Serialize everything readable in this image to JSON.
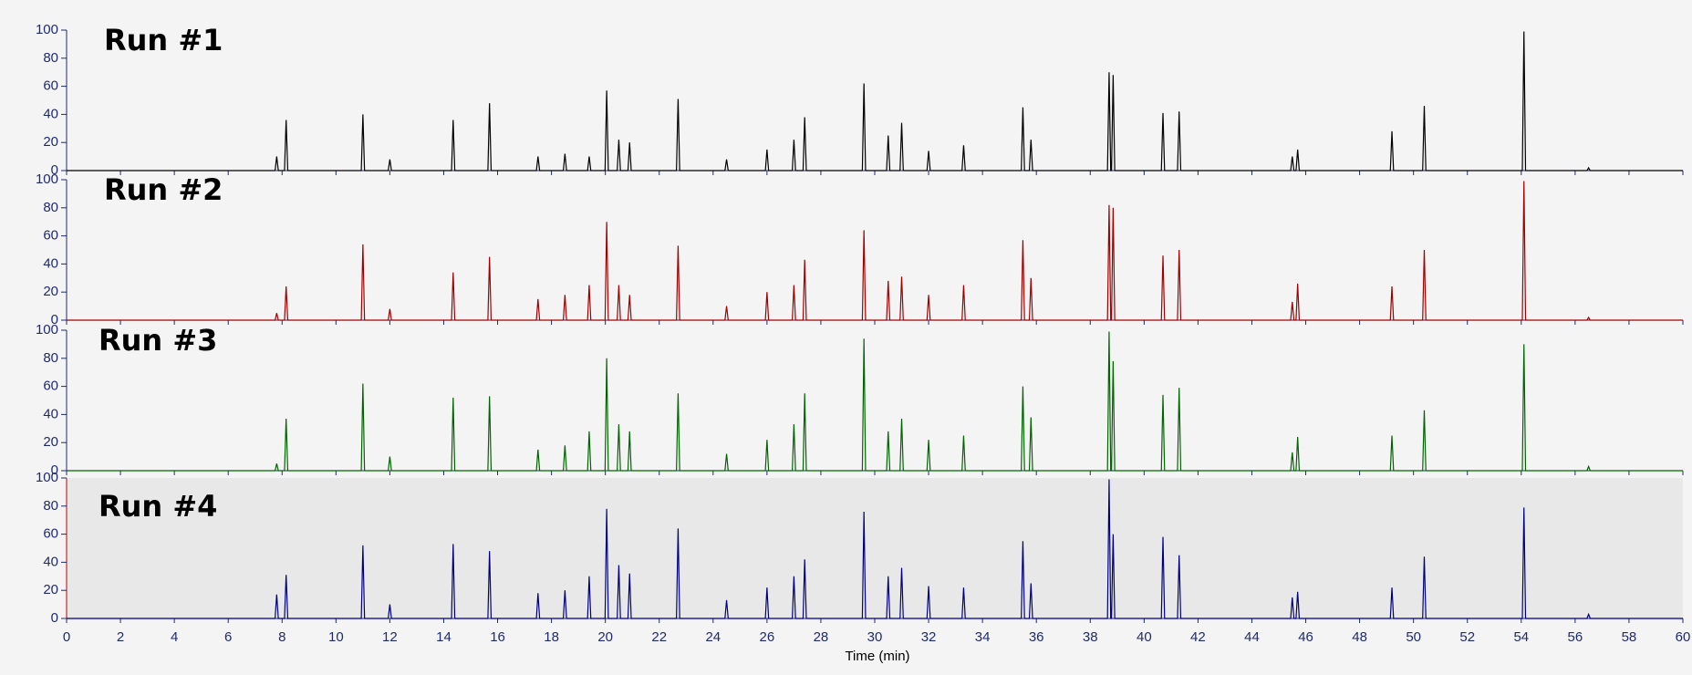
{
  "chart_data": {
    "type": "line",
    "xlabel": "Time (min)",
    "xlim": [
      0,
      60
    ],
    "xticks": [
      0,
      2,
      4,
      6,
      8,
      10,
      12,
      14,
      16,
      18,
      20,
      22,
      24,
      26,
      28,
      30,
      32,
      34,
      36,
      38,
      40,
      42,
      44,
      46,
      48,
      50,
      52,
      54,
      56,
      58,
      60
    ],
    "ylim": [
      0,
      100
    ],
    "yticks": [
      0,
      20,
      40,
      60,
      80,
      100
    ],
    "x": [
      0,
      7.74,
      7.8,
      7.86,
      8.09,
      8.15,
      8.21,
      10.94,
      11,
      11.06,
      11.94,
      12,
      12.06,
      14.29,
      14.35,
      14.41,
      15.64,
      15.7,
      15.76,
      17.44,
      17.5,
      17.56,
      18.44,
      18.5,
      18.56,
      19.34,
      19.4,
      19.46,
      19.99,
      20.05,
      20.11,
      20.44,
      20.5,
      20.56,
      20.84,
      20.9,
      20.96,
      22.64,
      22.7,
      22.76,
      24.44,
      24.5,
      24.56,
      25.94,
      26,
      26.06,
      26.94,
      27,
      27.06,
      27.34,
      27.4,
      27.46,
      29.54,
      29.6,
      29.66,
      30.44,
      30.5,
      30.56,
      30.94,
      31,
      31.06,
      31.94,
      32,
      32.06,
      33.24,
      33.3,
      33.36,
      35.44,
      35.5,
      35.56,
      35.74,
      35.8,
      35.86,
      38.64,
      38.7,
      38.76,
      38.79,
      38.85,
      38.91,
      40.64,
      40.7,
      40.76,
      41.24,
      41.3,
      41.36,
      45.44,
      45.5,
      45.56,
      45.64,
      45.7,
      45.76,
      49.14,
      49.2,
      49.26,
      50.34,
      50.4,
      50.46,
      54.04,
      54.1,
      54.16,
      56.44,
      56.5,
      56.56,
      60
    ],
    "series": [
      {
        "name": "Run #1",
        "color": "#000000",
        "values": [
          0,
          0,
          10,
          0,
          0,
          36,
          0,
          0,
          40,
          0,
          0,
          8,
          0,
          0,
          36,
          0,
          0,
          48,
          0,
          0,
          10,
          0,
          0,
          12,
          0,
          0,
          10,
          0,
          0,
          57,
          0,
          0,
          22,
          0,
          0,
          20,
          0,
          0,
          51,
          0,
          0,
          8,
          0,
          0,
          15,
          0,
          0,
          22,
          0,
          0,
          38,
          0,
          0,
          62,
          0,
          0,
          25,
          0,
          0,
          34,
          0,
          0,
          14,
          0,
          0,
          18,
          0,
          0,
          45,
          0,
          0,
          22,
          0,
          0,
          70,
          0,
          0,
          68,
          0,
          0,
          41,
          0,
          0,
          42,
          0,
          0,
          10,
          0,
          0,
          15,
          0,
          0,
          28,
          0,
          0,
          46,
          0,
          0,
          99,
          0,
          0,
          2,
          0,
          0
        ]
      },
      {
        "name": "Run #2",
        "color": "#a00000",
        "values": [
          0,
          0,
          5,
          0,
          0,
          24,
          0,
          0,
          54,
          0,
          0,
          8,
          0,
          0,
          34,
          0,
          0,
          45,
          0,
          0,
          15,
          0,
          0,
          18,
          0,
          0,
          25,
          0,
          0,
          70,
          0,
          0,
          25,
          0,
          0,
          18,
          0,
          0,
          53,
          0,
          0,
          10,
          0,
          0,
          20,
          0,
          0,
          25,
          0,
          0,
          43,
          0,
          0,
          64,
          0,
          0,
          28,
          0,
          0,
          31,
          0,
          0,
          18,
          0,
          0,
          25,
          0,
          0,
          57,
          0,
          0,
          30,
          0,
          0,
          82,
          0,
          0,
          80,
          0,
          0,
          46,
          0,
          0,
          50,
          0,
          0,
          13,
          0,
          0,
          26,
          0,
          0,
          24,
          0,
          0,
          50,
          0,
          0,
          99,
          0,
          0,
          2,
          0,
          0
        ]
      },
      {
        "name": "Run #3",
        "color": "#006400",
        "values": [
          0,
          0,
          5,
          0,
          0,
          37,
          0,
          0,
          62,
          0,
          0,
          10,
          0,
          0,
          52,
          0,
          0,
          53,
          0,
          0,
          15,
          0,
          0,
          18,
          0,
          0,
          28,
          0,
          0,
          80,
          0,
          0,
          33,
          0,
          0,
          28,
          0,
          0,
          55,
          0,
          0,
          12,
          0,
          0,
          22,
          0,
          0,
          33,
          0,
          0,
          55,
          0,
          0,
          94,
          0,
          0,
          28,
          0,
          0,
          37,
          0,
          0,
          22,
          0,
          0,
          25,
          0,
          0,
          60,
          0,
          0,
          38,
          0,
          0,
          99,
          0,
          0,
          78,
          0,
          0,
          54,
          0,
          0,
          59,
          0,
          0,
          13,
          0,
          0,
          24,
          0,
          0,
          25,
          0,
          0,
          43,
          0,
          0,
          90,
          0,
          0,
          3,
          0,
          0
        ]
      },
      {
        "name": "Run #4",
        "color": "#00007f",
        "values": [
          0,
          0,
          17,
          0,
          0,
          31,
          0,
          0,
          52,
          0,
          0,
          10,
          0,
          0,
          53,
          0,
          0,
          48,
          0,
          0,
          18,
          0,
          0,
          20,
          0,
          0,
          30,
          0,
          0,
          78,
          0,
          0,
          38,
          0,
          0,
          32,
          0,
          0,
          64,
          0,
          0,
          13,
          0,
          0,
          22,
          0,
          0,
          30,
          0,
          0,
          42,
          0,
          0,
          76,
          0,
          0,
          30,
          0,
          0,
          36,
          0,
          0,
          23,
          0,
          0,
          22,
          0,
          0,
          55,
          0,
          0,
          25,
          0,
          0,
          99,
          0,
          0,
          60,
          0,
          0,
          58,
          0,
          0,
          45,
          0,
          0,
          15,
          0,
          0,
          19,
          0,
          0,
          22,
          0,
          0,
          44,
          0,
          0,
          79,
          0,
          0,
          3,
          0,
          0
        ]
      }
    ]
  }
}
